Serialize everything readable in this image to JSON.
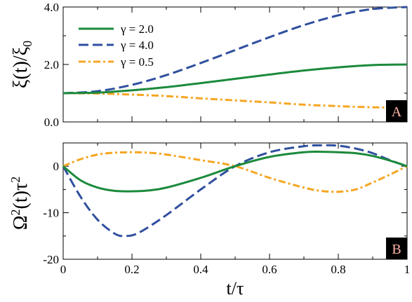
{
  "chart_data": [
    {
      "panel": "A",
      "type": "line",
      "ylabel": "ξ(t)/ξ0",
      "xlim": [
        0,
        1
      ],
      "ylim": [
        0,
        4
      ],
      "x_ticks": [
        0,
        0.2,
        0.4,
        0.6,
        0.8,
        1
      ],
      "y_ticks": [
        "0.0",
        "2.0",
        "4.0"
      ],
      "y_tick_values": [
        0,
        2,
        4
      ],
      "grid": false,
      "legend_position": "top-left",
      "panel_label": "A",
      "series": [
        {
          "name": "γ = 2.0",
          "color": "#1b8a3c",
          "style": "solid",
          "x": [
            0,
            0.1,
            0.2,
            0.3,
            0.4,
            0.5,
            0.6,
            0.7,
            0.8,
            0.9,
            1.0
          ],
          "y": [
            1.0,
            1.02,
            1.1,
            1.21,
            1.35,
            1.5,
            1.65,
            1.79,
            1.9,
            1.98,
            2.0
          ]
        },
        {
          "name": "γ = 4.0",
          "color": "#2f4f9e",
          "style": "dashed",
          "x": [
            0,
            0.1,
            0.2,
            0.3,
            0.4,
            0.5,
            0.6,
            0.7,
            0.8,
            0.9,
            1.0
          ],
          "y": [
            1.0,
            1.07,
            1.29,
            1.63,
            2.05,
            2.5,
            2.95,
            3.37,
            3.71,
            3.93,
            4.0
          ]
        },
        {
          "name": "γ = 0.5",
          "color": "#f5a623",
          "style": "dashdot",
          "x": [
            0,
            0.1,
            0.2,
            0.3,
            0.4,
            0.5,
            0.6,
            0.7,
            0.8,
            0.9,
            1.0
          ],
          "y": [
            1.0,
            0.99,
            0.95,
            0.9,
            0.82,
            0.75,
            0.68,
            0.6,
            0.55,
            0.51,
            0.5
          ]
        }
      ]
    },
    {
      "panel": "B",
      "type": "line",
      "xlabel": "t/τ",
      "ylabel": "Ω²(t)τ²",
      "xlim": [
        0,
        1
      ],
      "ylim": [
        -20,
        5
      ],
      "x_ticks": [
        "0",
        "0.2",
        "0.4",
        "0.6",
        "0.8",
        "1"
      ],
      "x_tick_values": [
        0,
        0.2,
        0.4,
        0.6,
        0.8,
        1
      ],
      "y_ticks": [
        "0",
        "-10",
        "-20"
      ],
      "y_tick_values": [
        0,
        -10,
        -20
      ],
      "grid": false,
      "panel_label": "B",
      "series": [
        {
          "name": "γ = 2.0",
          "color": "#1b8a3c",
          "style": "solid",
          "x": [
            0,
            0.05,
            0.1,
            0.15,
            0.2,
            0.25,
            0.3,
            0.4,
            0.5,
            0.6,
            0.7,
            0.75,
            0.8,
            0.85,
            0.9,
            0.95,
            1.0
          ],
          "y": [
            0,
            -3.0,
            -4.6,
            -5.3,
            -5.4,
            -5.2,
            -4.6,
            -2.5,
            0,
            2.0,
            3.0,
            3.1,
            3.0,
            2.8,
            2.2,
            1.2,
            0
          ]
        },
        {
          "name": "γ = 4.0",
          "color": "#2f4f9e",
          "style": "dashed",
          "x": [
            0,
            0.05,
            0.1,
            0.15,
            0.18,
            0.22,
            0.3,
            0.4,
            0.5,
            0.6,
            0.7,
            0.75,
            0.8,
            0.85,
            0.9,
            0.95,
            1.0
          ],
          "y": [
            0,
            -6.5,
            -11.5,
            -14.5,
            -15.0,
            -14.3,
            -10.5,
            -5.0,
            0,
            3.0,
            4.3,
            4.5,
            4.4,
            3.8,
            2.8,
            1.3,
            0
          ]
        },
        {
          "name": "γ = 0.5",
          "color": "#f5a623",
          "style": "dashdot",
          "x": [
            0,
            0.05,
            0.1,
            0.15,
            0.2,
            0.25,
            0.3,
            0.4,
            0.5,
            0.6,
            0.7,
            0.75,
            0.8,
            0.85,
            0.9,
            0.95,
            1.0
          ],
          "y": [
            0,
            1.5,
            2.5,
            2.9,
            3.0,
            2.9,
            2.5,
            1.3,
            0,
            -2.5,
            -4.6,
            -5.3,
            -5.5,
            -5.0,
            -3.5,
            -1.8,
            0
          ]
        }
      ]
    }
  ]
}
